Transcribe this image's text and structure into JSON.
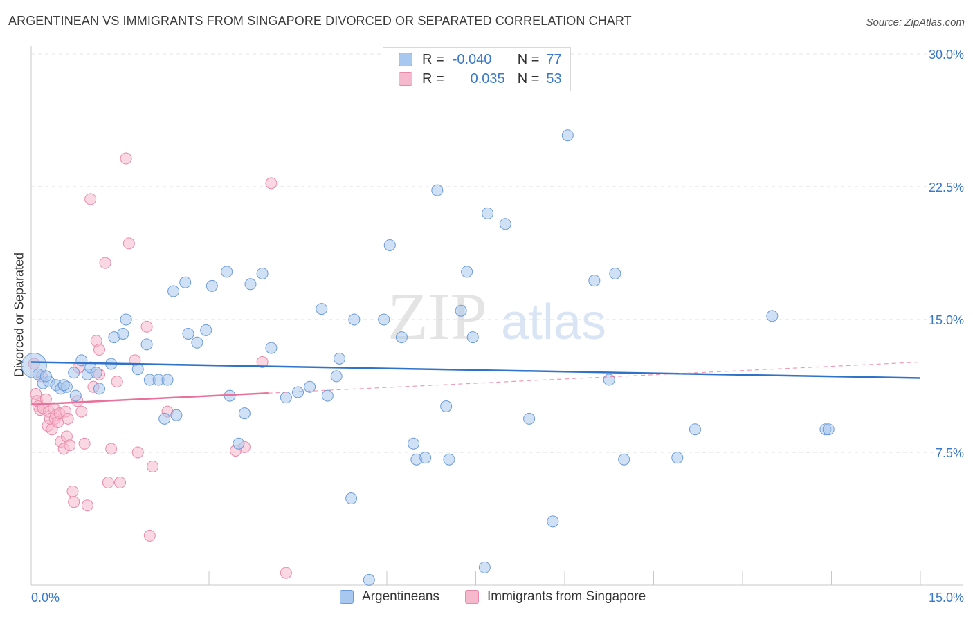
{
  "header": {
    "title": "ARGENTINEAN VS IMMIGRANTS FROM SINGAPORE DIVORCED OR SEPARATED CORRELATION CHART",
    "source": "Source: ZipAtlas.com"
  },
  "legend": {
    "rows": [
      {
        "r_label": "R =",
        "r_value": "-0.040",
        "n_label": "N =",
        "n_value": "77"
      },
      {
        "r_label": "R =",
        "r_value": "0.035",
        "n_label": "N =",
        "n_value": "53"
      }
    ]
  },
  "bottom_legend": {
    "series1": "Argentineans",
    "series2": "Immigrants from Singapore"
  },
  "watermark": {
    "zip": "ZIP",
    "atlas": "atlas"
  },
  "colors": {
    "blue_fill": "#a9c8ef",
    "blue_stroke": "#6c9bd8",
    "blue_line": "#2f72c9",
    "pink_fill": "#f6b8cc",
    "pink_stroke": "#e88aa9",
    "pink_line": "#e8709a",
    "axis_text": "#3a78c8"
  },
  "chart_data": {
    "type": "scatter",
    "title": "ARGENTINEAN VS IMMIGRANTS FROM SINGAPORE DIVORCED OR SEPARATED CORRELATION CHART",
    "ylabel": "Divorced or Separated",
    "xlabel": "",
    "xlim": [
      0,
      15
    ],
    "ylim": [
      0,
      30
    ],
    "x_ticks": [
      "0.0%",
      "15.0%"
    ],
    "y_ticks": [
      {
        "value": 7.5,
        "label": "7.5%"
      },
      {
        "value": 15,
        "label": "15.0%"
      },
      {
        "value": 22.5,
        "label": "22.5%"
      },
      {
        "value": 30,
        "label": "30.0%"
      }
    ],
    "grid": "horizontal dashed",
    "legend_position": "top-center",
    "series": [
      {
        "name": "Argentineans",
        "color": "#a9c8ef",
        "trend": {
          "x": [
            0,
            15
          ],
          "y": [
            12.6,
            11.7
          ]
        },
        "points": [
          [
            0.05,
            12.4
          ],
          [
            0.12,
            11.9
          ],
          [
            0.2,
            11.4
          ],
          [
            0.3,
            11.5
          ],
          [
            0.42,
            11.3
          ],
          [
            0.5,
            11.1
          ],
          [
            0.6,
            11.2
          ],
          [
            0.72,
            12.0
          ],
          [
            0.75,
            10.7
          ],
          [
            0.85,
            12.7
          ],
          [
            0.95,
            11.9
          ],
          [
            1.0,
            12.3
          ],
          [
            1.1,
            12.0
          ],
          [
            1.15,
            11.1
          ],
          [
            1.4,
            14.0
          ],
          [
            1.55,
            14.2
          ],
          [
            1.6,
            15.0
          ],
          [
            1.8,
            12.2
          ],
          [
            1.95,
            13.6
          ],
          [
            2.0,
            11.6
          ],
          [
            2.15,
            11.6
          ],
          [
            2.25,
            9.4
          ],
          [
            2.3,
            11.6
          ],
          [
            2.4,
            16.6
          ],
          [
            2.45,
            9.6
          ],
          [
            2.6,
            17.1
          ],
          [
            2.65,
            14.2
          ],
          [
            2.8,
            13.7
          ],
          [
            2.95,
            14.4
          ],
          [
            3.05,
            16.9
          ],
          [
            3.3,
            17.7
          ],
          [
            3.35,
            10.7
          ],
          [
            3.5,
            8.0
          ],
          [
            3.6,
            9.7
          ],
          [
            3.7,
            17.0
          ],
          [
            3.9,
            17.6
          ],
          [
            4.05,
            13.4
          ],
          [
            4.3,
            10.6
          ],
          [
            4.5,
            10.9
          ],
          [
            4.7,
            11.2
          ],
          [
            4.9,
            15.6
          ],
          [
            5.0,
            10.7
          ],
          [
            5.15,
            11.8
          ],
          [
            5.2,
            12.8
          ],
          [
            5.4,
            4.9
          ],
          [
            5.45,
            15.0
          ],
          [
            5.7,
            0.3
          ],
          [
            5.95,
            15.0
          ],
          [
            6.05,
            19.2
          ],
          [
            6.25,
            14.0
          ],
          [
            6.45,
            8.0
          ],
          [
            6.5,
            7.1
          ],
          [
            6.65,
            7.2
          ],
          [
            6.85,
            22.3
          ],
          [
            7.0,
            10.1
          ],
          [
            7.05,
            7.1
          ],
          [
            7.25,
            15.5
          ],
          [
            7.35,
            17.7
          ],
          [
            7.45,
            14.0
          ],
          [
            7.65,
            1.0
          ],
          [
            7.7,
            21.0
          ],
          [
            8.0,
            20.4
          ],
          [
            8.4,
            9.4
          ],
          [
            8.8,
            3.6
          ],
          [
            9.05,
            25.4
          ],
          [
            9.5,
            17.2
          ],
          [
            9.75,
            11.6
          ],
          [
            9.85,
            17.6
          ],
          [
            10.0,
            7.1
          ],
          [
            10.9,
            7.2
          ],
          [
            11.2,
            8.8
          ],
          [
            12.5,
            15.2
          ],
          [
            13.4,
            8.8
          ],
          [
            13.45,
            8.8
          ],
          [
            0.25,
            11.8
          ],
          [
            0.55,
            11.3
          ],
          [
            1.35,
            12.5
          ]
        ]
      },
      {
        "name": "Immigrants from Singapore",
        "color": "#f6b8cc",
        "trend": {
          "x": [
            0,
            4
          ],
          "y": [
            10.2,
            10.85
          ]
        },
        "trend_dashed": {
          "x": [
            4,
            15
          ],
          "y": [
            10.85,
            12.6
          ]
        },
        "points": [
          [
            0.05,
            12.5
          ],
          [
            0.08,
            10.8
          ],
          [
            0.1,
            10.4
          ],
          [
            0.12,
            10.1
          ],
          [
            0.15,
            9.9
          ],
          [
            0.18,
            11.8
          ],
          [
            0.2,
            10.0
          ],
          [
            0.25,
            10.5
          ],
          [
            0.28,
            9.0
          ],
          [
            0.3,
            9.8
          ],
          [
            0.32,
            9.4
          ],
          [
            0.35,
            8.8
          ],
          [
            0.38,
            10.0
          ],
          [
            0.4,
            9.4
          ],
          [
            0.42,
            9.6
          ],
          [
            0.45,
            9.2
          ],
          [
            0.48,
            9.7
          ],
          [
            0.5,
            8.1
          ],
          [
            0.55,
            7.7
          ],
          [
            0.58,
            9.8
          ],
          [
            0.6,
            8.4
          ],
          [
            0.62,
            9.4
          ],
          [
            0.65,
            7.9
          ],
          [
            0.7,
            5.3
          ],
          [
            0.72,
            4.7
          ],
          [
            0.78,
            10.4
          ],
          [
            0.8,
            12.3
          ],
          [
            0.85,
            9.8
          ],
          [
            0.9,
            8.0
          ],
          [
            0.95,
            4.5
          ],
          [
            1.0,
            21.8
          ],
          [
            1.05,
            11.2
          ],
          [
            1.1,
            13.8
          ],
          [
            1.15,
            11.9
          ],
          [
            1.25,
            18.2
          ],
          [
            1.3,
            5.8
          ],
          [
            1.35,
            7.7
          ],
          [
            1.45,
            11.5
          ],
          [
            1.5,
            5.8
          ],
          [
            1.6,
            24.1
          ],
          [
            1.65,
            19.3
          ],
          [
            1.75,
            12.7
          ],
          [
            1.8,
            7.5
          ],
          [
            1.95,
            14.6
          ],
          [
            2.0,
            2.8
          ],
          [
            2.05,
            6.7
          ],
          [
            2.3,
            9.8
          ],
          [
            3.45,
            7.6
          ],
          [
            3.6,
            7.8
          ],
          [
            3.9,
            12.6
          ],
          [
            4.05,
            22.7
          ],
          [
            4.3,
            0.7
          ],
          [
            1.15,
            13.3
          ]
        ]
      }
    ]
  }
}
